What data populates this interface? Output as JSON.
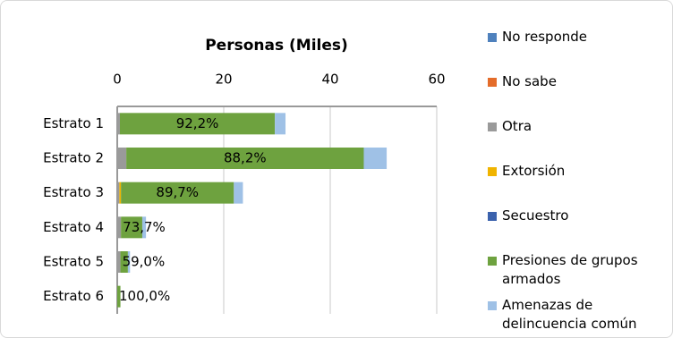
{
  "chart_data": {
    "type": "stacked-bar-horizontal",
    "title": "Personas (Miles)",
    "categories": [
      "Estrato 1",
      "Estrato 2",
      "Estrato 3",
      "Estrato 4",
      "Estrato 5",
      "Estrato 6"
    ],
    "xlim": [
      0,
      60
    ],
    "xticks": [
      0,
      20,
      40,
      60
    ],
    "grid": true,
    "legend": "right",
    "series": [
      {
        "name": "No responde",
        "color": "#4f81bd",
        "values": [
          0,
          0,
          0,
          0,
          0,
          0
        ]
      },
      {
        "name": "No sabe",
        "color": "#e46c2a",
        "values": [
          0,
          0,
          0,
          0,
          0,
          0
        ]
      },
      {
        "name": "Otra",
        "color": "#9a9a9a",
        "values": [
          0.5,
          1.7,
          0.4,
          0.7,
          0.6,
          0
        ]
      },
      {
        "name": "Extorsión",
        "color": "#f0b400",
        "values": [
          0,
          0,
          0.3,
          0,
          0,
          0
        ]
      },
      {
        "name": "Secuestro",
        "color": "#3b62ad",
        "values": [
          0,
          0,
          0,
          0,
          0,
          0
        ]
      },
      {
        "name": "Presiones de grupos armados",
        "color": "#6ea23f",
        "values": [
          29.1,
          44.6,
          21.2,
          4.0,
          1.4,
          0.6
        ]
      },
      {
        "name": "Amenazas de delincuencia común",
        "color": "#9fc1e6",
        "values": [
          2.0,
          4.3,
          1.7,
          0.7,
          0.4,
          0
        ]
      }
    ],
    "share_labels": [
      "92,2%",
      "88,2%",
      "89,7%",
      "73,7%",
      "59,0%",
      "100,0%"
    ]
  }
}
